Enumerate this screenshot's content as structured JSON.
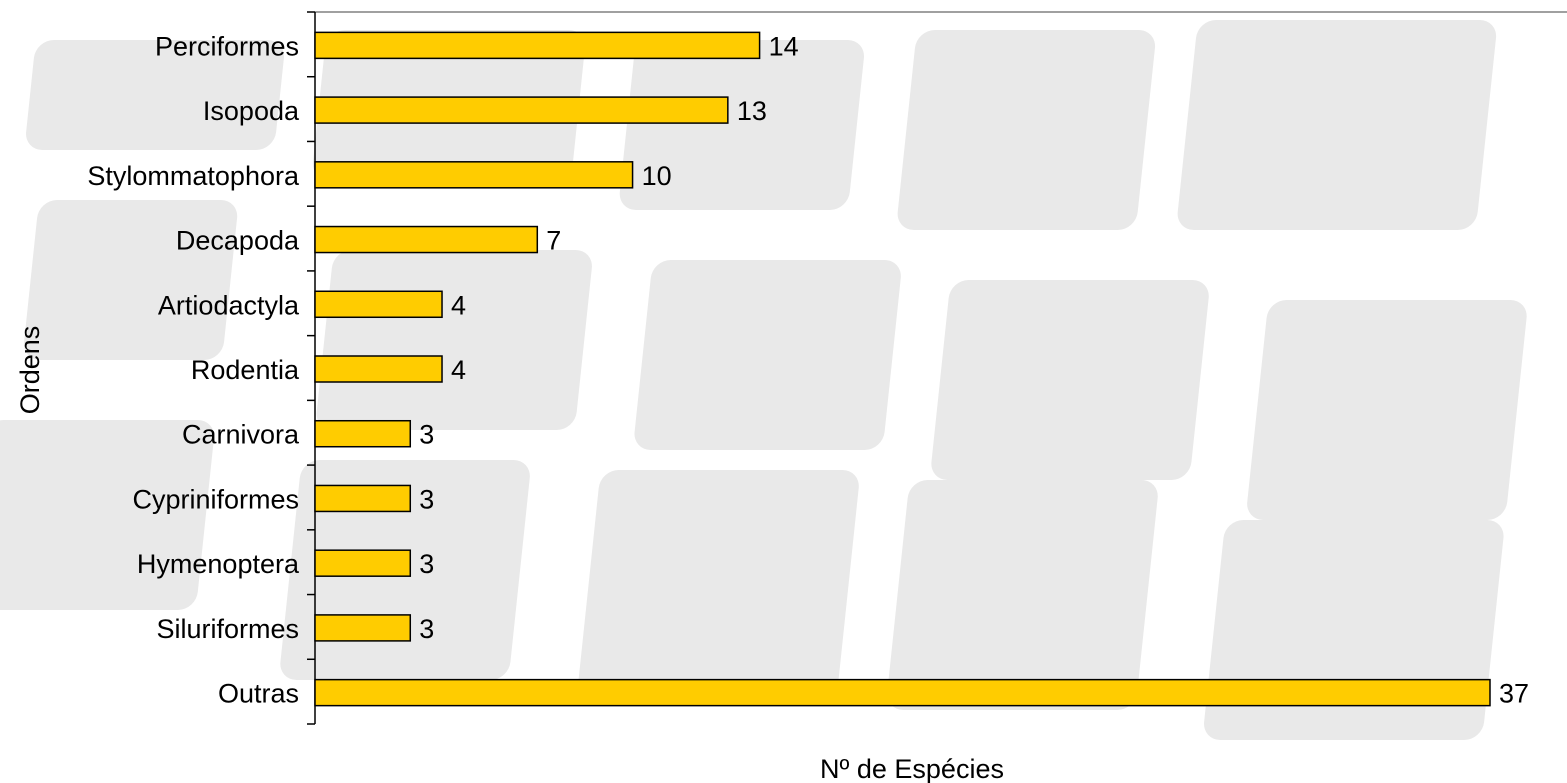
{
  "chart_data": {
    "type": "bar",
    "orientation": "horizontal",
    "categories": [
      "Perciformes",
      "Isopoda",
      "Stylommatophora",
      "Decapoda",
      "Artiodactyla",
      "Rodentia",
      "Carnivora",
      "Cypriniformes",
      "Hymenoptera",
      "Siluriformes",
      "Outras"
    ],
    "values": [
      14,
      13,
      10,
      7,
      4,
      4,
      3,
      3,
      3,
      3,
      37
    ],
    "xlabel": "Nº de Espécies",
    "ylabel": "Ordens",
    "xlim": [
      0,
      39
    ],
    "grid": false,
    "legend": "none",
    "data_labels": true,
    "colors": {
      "bar_fill": "#FFCC00",
      "bar_stroke": "#000000",
      "axis": "#000000",
      "background_watermark": "#E9E9E9"
    }
  }
}
